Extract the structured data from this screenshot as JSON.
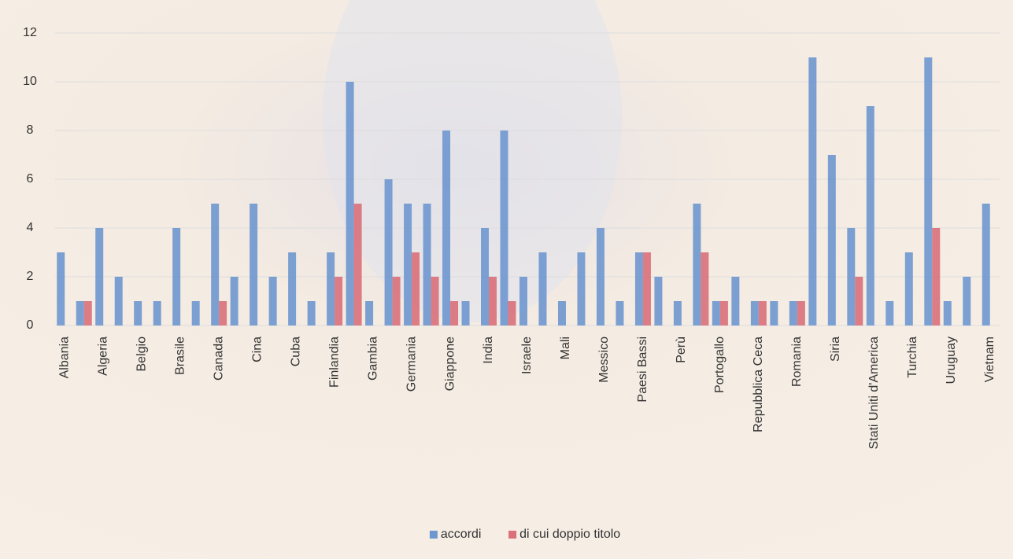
{
  "chart_data": {
    "type": "bar",
    "categories": [
      "Albania",
      null,
      "Algeria",
      null,
      "Belgio",
      null,
      "Brasile",
      null,
      "Canada",
      null,
      "Cina",
      null,
      "Cuba",
      null,
      "Finlandia",
      null,
      "Gambia",
      null,
      "Germania",
      null,
      "Giappone",
      null,
      "India",
      null,
      "Israele",
      null,
      "Mali",
      null,
      "Messico",
      null,
      "Paesi Bassi",
      null,
      "Perù",
      null,
      "Portogallo",
      null,
      "Repubblica Ceca",
      null,
      "Romania",
      null,
      "Siria",
      null,
      "Stati Uniti d'America",
      null,
      "Turchia",
      null,
      "Uruguay",
      null,
      "Vietnam"
    ],
    "series": [
      {
        "name": "accordi",
        "color": "#6f97cf",
        "values": [
          3,
          1,
          4,
          2,
          1,
          1,
          4,
          1,
          5,
          2,
          5,
          2,
          3,
          1,
          3,
          10,
          1,
          6,
          5,
          5,
          8,
          1,
          4,
          8,
          2,
          3,
          1,
          3,
          4,
          1,
          3,
          2,
          1,
          5,
          1,
          2,
          1,
          1,
          1,
          11,
          7,
          4,
          9,
          1,
          3,
          11,
          1,
          2,
          5
        ]
      },
      {
        "name": "di cui doppio titolo",
        "color": "#d9707a",
        "values": [
          null,
          1,
          null,
          null,
          null,
          null,
          null,
          null,
          1,
          null,
          null,
          null,
          null,
          null,
          2,
          5,
          null,
          2,
          3,
          2,
          1,
          null,
          2,
          1,
          null,
          null,
          null,
          null,
          null,
          null,
          3,
          null,
          null,
          3,
          1,
          null,
          1,
          null,
          1,
          null,
          null,
          2,
          null,
          null,
          null,
          4,
          null,
          null,
          null
        ]
      }
    ],
    "ylim": [
      0,
      12
    ],
    "yticks": [
      0,
      2,
      4,
      6,
      8,
      10,
      12
    ],
    "grid": true,
    "legend": "bottom"
  }
}
